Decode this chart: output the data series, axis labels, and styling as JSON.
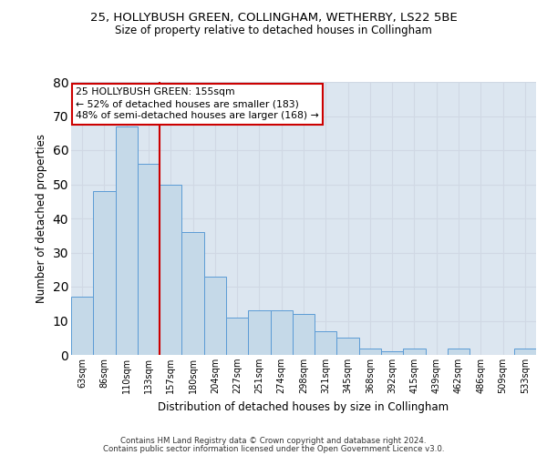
{
  "title1": "25, HOLLYBUSH GREEN, COLLINGHAM, WETHERBY, LS22 5BE",
  "title2": "Size of property relative to detached houses in Collingham",
  "xlabel": "Distribution of detached houses by size in Collingham",
  "ylabel": "Number of detached properties",
  "categories": [
    "63sqm",
    "86sqm",
    "110sqm",
    "133sqm",
    "157sqm",
    "180sqm",
    "204sqm",
    "227sqm",
    "251sqm",
    "274sqm",
    "298sqm",
    "321sqm",
    "345sqm",
    "368sqm",
    "392sqm",
    "415sqm",
    "439sqm",
    "462sqm",
    "486sqm",
    "509sqm",
    "533sqm"
  ],
  "values": [
    17,
    48,
    67,
    56,
    50,
    36,
    23,
    11,
    13,
    13,
    12,
    7,
    5,
    2,
    1,
    2,
    0,
    2,
    0,
    0,
    2
  ],
  "bar_color": "#c5d9e8",
  "bar_edge_color": "#5b9bd5",
  "vline_color": "#cc0000",
  "vline_x_index": 4,
  "ylim": [
    0,
    80
  ],
  "yticks": [
    0,
    10,
    20,
    30,
    40,
    50,
    60,
    70,
    80
  ],
  "annotation_text": "25 HOLLYBUSH GREEN: 155sqm\n← 52% of detached houses are smaller (183)\n48% of semi-detached houses are larger (168) →",
  "annotation_box_color": "#ffffff",
  "annotation_box_edge": "#cc0000",
  "footer1": "Contains HM Land Registry data © Crown copyright and database right 2024.",
  "footer2": "Contains public sector information licensed under the Open Government Licence v3.0.",
  "grid_color": "#d0d8e4",
  "background_color": "#dce6f0"
}
